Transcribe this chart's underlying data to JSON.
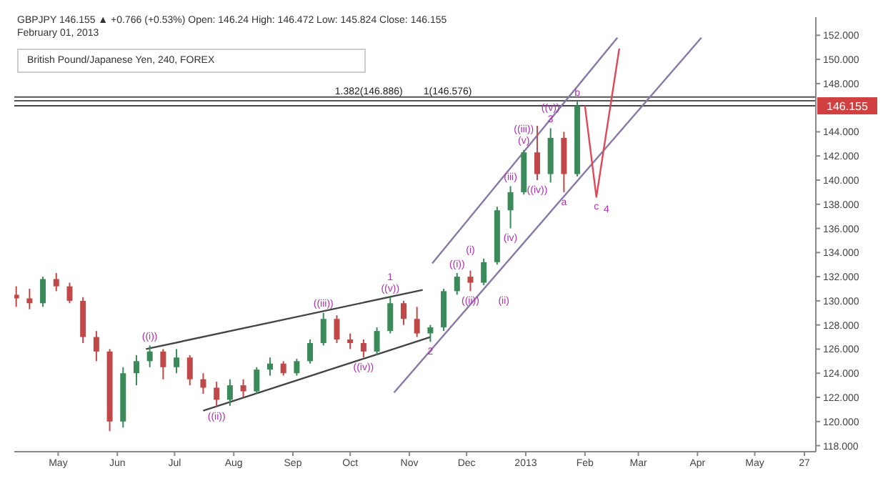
{
  "chart_data": {
    "type": "candlestick",
    "title": "GBPJPY 146.155 ▲ +0.766 (+0.53%) Open: 146.24 High: 146.472 Low: 145.824 Close: 146.155",
    "subtitle": "February 01, 2013",
    "annotations": [
      "British Pound/Japanese Yen, 240, FOREX",
      {
        "text": "((i))",
        "x": "2012-06-18",
        "y": 126.3
      },
      {
        "text": "((ii))",
        "x": "2012-07-23",
        "y": 121.2
      },
      {
        "text": "((iii))",
        "x": "2012-09-17",
        "y": 129.0
      },
      {
        "text": "((iv))",
        "x": "2012-10-08",
        "y": 125.3
      },
      {
        "text": "((v))",
        "x": "2012-10-22",
        "y": 130.3
      },
      {
        "text": "1",
        "x": "2012-10-22",
        "y": 130.3
      },
      {
        "text": "2",
        "x": "2012-11-12",
        "y": 126.6
      },
      {
        "text": "((i))",
        "x": "2012-11-26",
        "y": 132.3
      },
      {
        "text": "((ii))",
        "x": "2012-12-03",
        "y": 130.8
      },
      {
        "text": "(i)",
        "x": "2012-12-03",
        "y": 132.5
      },
      {
        "text": "(ii)",
        "x": "2012-12-10",
        "y": 131.3
      },
      {
        "text": "(iii)",
        "x": "2012-12-24",
        "y": 139.5
      },
      {
        "text": "(iv)",
        "x": "2012-12-24",
        "y": 136.0
      },
      {
        "text": "(v)",
        "x": "2012-12-31",
        "y": 142.5
      },
      {
        "text": "((iii))",
        "x": "2012-12-31",
        "y": 142.5
      },
      {
        "text": "((iv))",
        "x": "2013-01-07",
        "y": 140.0
      },
      {
        "text": "((v))",
        "x": "2013-01-14",
        "y": 144.3
      },
      {
        "text": "3",
        "x": "2013-01-14",
        "y": 144.3
      },
      {
        "text": "a",
        "x": "2013-01-21",
        "y": 139.0
      },
      {
        "text": "b",
        "x": "2013-01-28",
        "y": 146.5
      },
      {
        "text": "c",
        "x": "2013-02-07",
        "y": 138.6
      },
      {
        "text": "4",
        "x": "2013-02-07",
        "y": 138.6
      }
    ],
    "x": [
      "2012-04-09",
      "2012-04-16",
      "2012-04-23",
      "2012-04-30",
      "2012-05-07",
      "2012-05-14",
      "2012-05-21",
      "2012-05-28",
      "2012-06-04",
      "2012-06-11",
      "2012-06-18",
      "2012-06-25",
      "2012-07-02",
      "2012-07-09",
      "2012-07-16",
      "2012-07-23",
      "2012-07-30",
      "2012-08-06",
      "2012-08-13",
      "2012-08-20",
      "2012-08-27",
      "2012-09-03",
      "2012-09-10",
      "2012-09-17",
      "2012-09-24",
      "2012-10-01",
      "2012-10-08",
      "2012-10-15",
      "2012-10-22",
      "2012-10-29",
      "2012-11-05",
      "2012-11-12",
      "2012-11-19",
      "2012-11-26",
      "2012-12-03",
      "2012-12-10",
      "2012-12-17",
      "2012-12-24",
      "2012-12-31",
      "2013-01-07",
      "2013-01-14",
      "2013-01-21",
      "2013-01-28"
    ],
    "ohlc": [
      [
        130.5,
        131.2,
        129.5,
        130.2
      ],
      [
        130.2,
        131.0,
        129.3,
        129.8
      ],
      [
        129.8,
        132.0,
        129.5,
        131.8
      ],
      [
        131.8,
        132.3,
        130.8,
        131.2
      ],
      [
        131.2,
        131.5,
        129.8,
        130.0
      ],
      [
        130.0,
        130.3,
        126.5,
        127.0
      ],
      [
        127.0,
        127.5,
        125.0,
        125.8
      ],
      [
        125.8,
        126.0,
        119.2,
        120.0
      ],
      [
        120.0,
        124.5,
        119.5,
        124.0
      ],
      [
        124.0,
        125.5,
        123.0,
        125.0
      ],
      [
        125.0,
        126.3,
        124.5,
        125.8
      ],
      [
        125.8,
        126.0,
        123.5,
        124.5
      ],
      [
        124.5,
        126.0,
        124.0,
        125.3
      ],
      [
        125.3,
        125.5,
        123.0,
        123.5
      ],
      [
        123.5,
        124.0,
        122.3,
        122.8
      ],
      [
        122.8,
        123.3,
        121.2,
        121.8
      ],
      [
        121.8,
        123.5,
        121.3,
        123.0
      ],
      [
        123.0,
        123.5,
        122.0,
        122.5
      ],
      [
        122.5,
        124.5,
        122.3,
        124.3
      ],
      [
        124.3,
        125.3,
        123.8,
        124.8
      ],
      [
        124.8,
        125.0,
        123.8,
        124.0
      ],
      [
        124.0,
        125.2,
        123.8,
        125.0
      ],
      [
        125.0,
        126.8,
        124.8,
        126.5
      ],
      [
        126.5,
        129.0,
        126.3,
        128.5
      ],
      [
        128.5,
        128.8,
        126.5,
        126.8
      ],
      [
        126.8,
        127.3,
        126.0,
        126.5
      ],
      [
        126.5,
        126.8,
        125.3,
        125.8
      ],
      [
        125.8,
        127.8,
        125.5,
        127.5
      ],
      [
        127.5,
        130.3,
        127.3,
        129.8
      ],
      [
        129.8,
        130.0,
        128.0,
        128.5
      ],
      [
        128.5,
        129.5,
        127.0,
        127.3
      ],
      [
        127.3,
        128.0,
        126.6,
        127.8
      ],
      [
        127.8,
        131.0,
        127.5,
        130.8
      ],
      [
        130.8,
        132.3,
        130.5,
        132.0
      ],
      [
        132.0,
        132.5,
        130.8,
        131.5
      ],
      [
        131.5,
        133.5,
        131.3,
        133.2
      ],
      [
        133.2,
        137.8,
        133.0,
        137.5
      ],
      [
        137.5,
        139.5,
        136.0,
        139.0
      ],
      [
        139.0,
        142.5,
        138.8,
        142.3
      ],
      [
        142.3,
        144.5,
        140.0,
        140.5
      ],
      [
        140.5,
        144.3,
        139.8,
        143.5
      ],
      [
        143.5,
        144.0,
        139.0,
        140.5
      ],
      [
        140.5,
        146.5,
        140.3,
        146.155
      ]
    ],
    "series": [
      {
        "type": "line",
        "color": "#444444",
        "x": [
          "2012-06-16",
          "2012-11-08"
        ],
        "values": [
          126.0,
          130.9
        ]
      },
      {
        "type": "line",
        "color": "#444444",
        "x": [
          "2012-07-16",
          "2012-11-12"
        ],
        "values": [
          120.9,
          127.0
        ]
      },
      {
        "type": "line",
        "color": "#8878a8",
        "x": [
          "2012-11-13",
          "2013-02-18"
        ],
        "values": [
          133.1,
          151.8
        ]
      },
      {
        "type": "line",
        "color": "#8878a8",
        "x": [
          "2012-10-24",
          "2013-04-03"
        ],
        "values": [
          122.4,
          151.8
        ]
      },
      {
        "type": "line",
        "color": "#e04858",
        "x": [
          "2013-02-01",
          "2013-02-07",
          "2013-02-19"
        ],
        "values": [
          146.155,
          138.6,
          150.9
        ]
      }
    ],
    "ref_lines": [
      {
        "axis": "y",
        "value": 146.886,
        "label": "1.382(146.886)",
        "color": "#555555"
      },
      {
        "axis": "y",
        "value": 146.576,
        "label": "1(146.576)",
        "color": "#555555"
      },
      {
        "axis": "y",
        "value": 146.155,
        "label": "146.155",
        "color": "#444444"
      }
    ],
    "xlim": [
      "2012-04-08",
      "2013-06-02"
    ],
    "xticks": [
      {
        "value": "2012-05-01",
        "label": "May"
      },
      {
        "value": "2012-06-01",
        "label": "Jun"
      },
      {
        "value": "2012-07-01",
        "label": "Jul"
      },
      {
        "value": "2012-08-01",
        "label": "Aug"
      },
      {
        "value": "2012-09-01",
        "label": "Sep"
      },
      {
        "value": "2012-10-01",
        "label": "Oct"
      },
      {
        "value": "2012-11-01",
        "label": "Nov"
      },
      {
        "value": "2012-12-01",
        "label": "Dec"
      },
      {
        "value": "2013-01-01",
        "label": "2013"
      },
      {
        "value": "2013-02-01",
        "label": "Feb"
      },
      {
        "value": "2013-03-01",
        "label": "Mar"
      },
      {
        "value": "2013-04-01",
        "label": "Apr"
      },
      {
        "value": "2013-05-01",
        "label": "May"
      },
      {
        "value": "2013-05-27",
        "label": "27"
      }
    ],
    "ylim": [
      117.5,
      153.5
    ],
    "yticks": [
      {
        "value": 118,
        "label": "118.000"
      },
      {
        "value": 120,
        "label": "120.000"
      },
      {
        "value": 122,
        "label": "122.000"
      },
      {
        "value": 124,
        "label": "124.000"
      },
      {
        "value": 126,
        "label": "126.000"
      },
      {
        "value": 128,
        "label": "128.000"
      },
      {
        "value": 130,
        "label": "130.000"
      },
      {
        "value": 132,
        "label": "132.000"
      },
      {
        "value": 134,
        "label": "134.000"
      },
      {
        "value": 136,
        "label": "136.000"
      },
      {
        "value": 138,
        "label": "138.000"
      },
      {
        "value": 140,
        "label": "140.000"
      },
      {
        "value": 142,
        "label": "142.000"
      },
      {
        "value": 144,
        "label": "144.000"
      },
      {
        "value": 148,
        "label": "148.000"
      },
      {
        "value": 150,
        "label": "150.000"
      },
      {
        "value": 152,
        "label": "152.000"
      }
    ],
    "grid": false
  }
}
